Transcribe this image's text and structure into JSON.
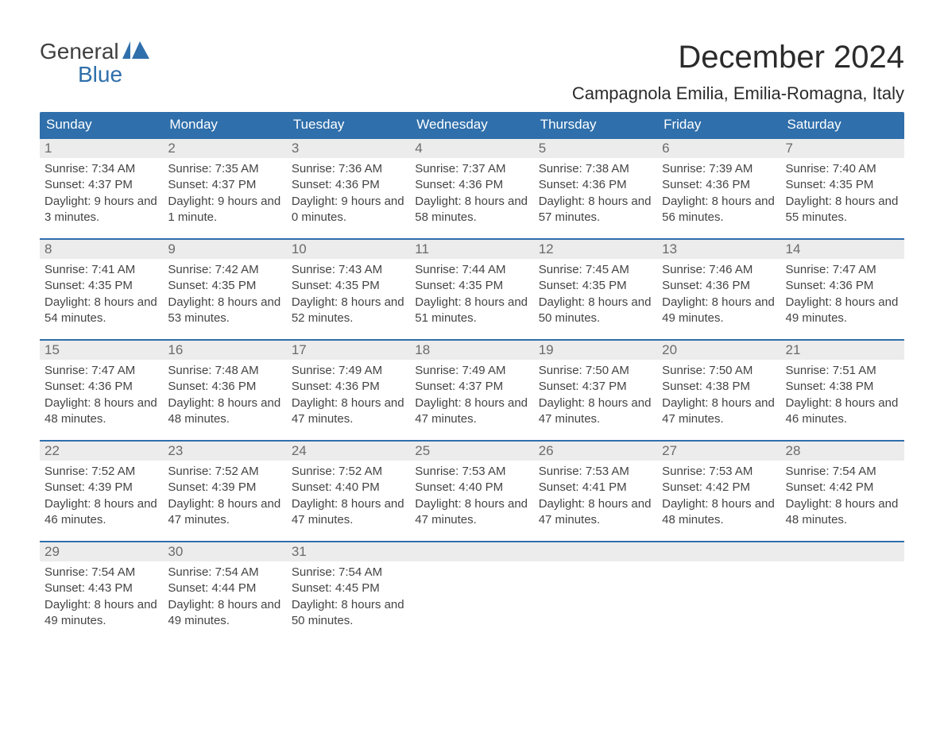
{
  "logo": {
    "line1": "General",
    "line2": "Blue"
  },
  "colors": {
    "header_bg": "#2f6fab",
    "header_text": "#ffffff",
    "daynum_bg": "#ececec",
    "daynum_text": "#6b6b6b",
    "body_text": "#444444",
    "logo_top": "#3f3f3f",
    "logo_bottom": "#2f6fab",
    "accent": "#2f6fab",
    "page_bg": "#ffffff"
  },
  "title": "December 2024",
  "location": "Campagnola Emilia, Emilia-Romagna, Italy",
  "weekdays": [
    "Sunday",
    "Monday",
    "Tuesday",
    "Wednesday",
    "Thursday",
    "Friday",
    "Saturday"
  ],
  "weeks": [
    [
      {
        "n": "1",
        "sunrise": "7:34 AM",
        "sunset": "4:37 PM",
        "daylight": "9 hours and 3 minutes."
      },
      {
        "n": "2",
        "sunrise": "7:35 AM",
        "sunset": "4:37 PM",
        "daylight": "9 hours and 1 minute."
      },
      {
        "n": "3",
        "sunrise": "7:36 AM",
        "sunset": "4:36 PM",
        "daylight": "9 hours and 0 minutes."
      },
      {
        "n": "4",
        "sunrise": "7:37 AM",
        "sunset": "4:36 PM",
        "daylight": "8 hours and 58 minutes."
      },
      {
        "n": "5",
        "sunrise": "7:38 AM",
        "sunset": "4:36 PM",
        "daylight": "8 hours and 57 minutes."
      },
      {
        "n": "6",
        "sunrise": "7:39 AM",
        "sunset": "4:36 PM",
        "daylight": "8 hours and 56 minutes."
      },
      {
        "n": "7",
        "sunrise": "7:40 AM",
        "sunset": "4:35 PM",
        "daylight": "8 hours and 55 minutes."
      }
    ],
    [
      {
        "n": "8",
        "sunrise": "7:41 AM",
        "sunset": "4:35 PM",
        "daylight": "8 hours and 54 minutes."
      },
      {
        "n": "9",
        "sunrise": "7:42 AM",
        "sunset": "4:35 PM",
        "daylight": "8 hours and 53 minutes."
      },
      {
        "n": "10",
        "sunrise": "7:43 AM",
        "sunset": "4:35 PM",
        "daylight": "8 hours and 52 minutes."
      },
      {
        "n": "11",
        "sunrise": "7:44 AM",
        "sunset": "4:35 PM",
        "daylight": "8 hours and 51 minutes."
      },
      {
        "n": "12",
        "sunrise": "7:45 AM",
        "sunset": "4:35 PM",
        "daylight": "8 hours and 50 minutes."
      },
      {
        "n": "13",
        "sunrise": "7:46 AM",
        "sunset": "4:36 PM",
        "daylight": "8 hours and 49 minutes."
      },
      {
        "n": "14",
        "sunrise": "7:47 AM",
        "sunset": "4:36 PM",
        "daylight": "8 hours and 49 minutes."
      }
    ],
    [
      {
        "n": "15",
        "sunrise": "7:47 AM",
        "sunset": "4:36 PM",
        "daylight": "8 hours and 48 minutes."
      },
      {
        "n": "16",
        "sunrise": "7:48 AM",
        "sunset": "4:36 PM",
        "daylight": "8 hours and 48 minutes."
      },
      {
        "n": "17",
        "sunrise": "7:49 AM",
        "sunset": "4:36 PM",
        "daylight": "8 hours and 47 minutes."
      },
      {
        "n": "18",
        "sunrise": "7:49 AM",
        "sunset": "4:37 PM",
        "daylight": "8 hours and 47 minutes."
      },
      {
        "n": "19",
        "sunrise": "7:50 AM",
        "sunset": "4:37 PM",
        "daylight": "8 hours and 47 minutes."
      },
      {
        "n": "20",
        "sunrise": "7:50 AM",
        "sunset": "4:38 PM",
        "daylight": "8 hours and 47 minutes."
      },
      {
        "n": "21",
        "sunrise": "7:51 AM",
        "sunset": "4:38 PM",
        "daylight": "8 hours and 46 minutes."
      }
    ],
    [
      {
        "n": "22",
        "sunrise": "7:52 AM",
        "sunset": "4:39 PM",
        "daylight": "8 hours and 46 minutes."
      },
      {
        "n": "23",
        "sunrise": "7:52 AM",
        "sunset": "4:39 PM",
        "daylight": "8 hours and 47 minutes."
      },
      {
        "n": "24",
        "sunrise": "7:52 AM",
        "sunset": "4:40 PM",
        "daylight": "8 hours and 47 minutes."
      },
      {
        "n": "25",
        "sunrise": "7:53 AM",
        "sunset": "4:40 PM",
        "daylight": "8 hours and 47 minutes."
      },
      {
        "n": "26",
        "sunrise": "7:53 AM",
        "sunset": "4:41 PM",
        "daylight": "8 hours and 47 minutes."
      },
      {
        "n": "27",
        "sunrise": "7:53 AM",
        "sunset": "4:42 PM",
        "daylight": "8 hours and 48 minutes."
      },
      {
        "n": "28",
        "sunrise": "7:54 AM",
        "sunset": "4:42 PM",
        "daylight": "8 hours and 48 minutes."
      }
    ],
    [
      {
        "n": "29",
        "sunrise": "7:54 AM",
        "sunset": "4:43 PM",
        "daylight": "8 hours and 49 minutes."
      },
      {
        "n": "30",
        "sunrise": "7:54 AM",
        "sunset": "4:44 PM",
        "daylight": "8 hours and 49 minutes."
      },
      {
        "n": "31",
        "sunrise": "7:54 AM",
        "sunset": "4:45 PM",
        "daylight": "8 hours and 50 minutes."
      },
      null,
      null,
      null,
      null
    ]
  ],
  "labels": {
    "sunrise_prefix": "Sunrise: ",
    "sunset_prefix": "Sunset: ",
    "daylight_prefix": "Daylight: "
  }
}
